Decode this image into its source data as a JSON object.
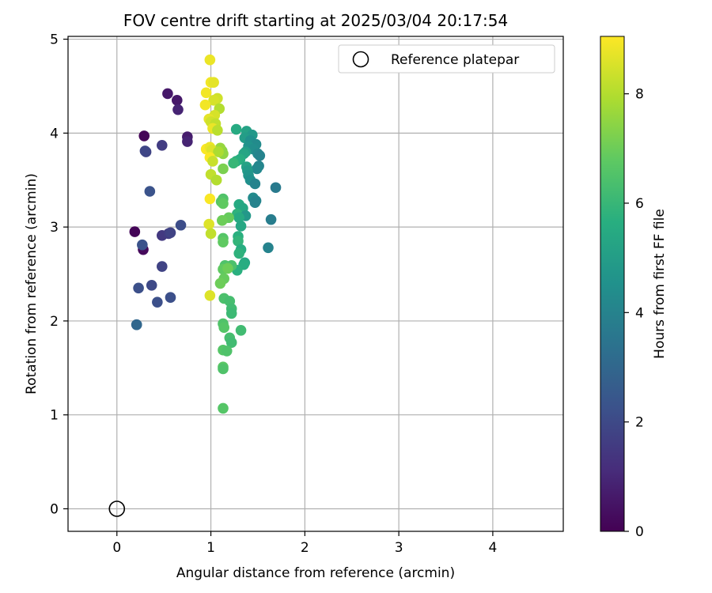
{
  "chart_data": {
    "type": "scatter",
    "title": "FOV centre drift starting at 2025/03/04 20:17:54",
    "xlabel": "Angular distance from reference (arcmin)",
    "ylabel": "Rotation from reference (arcmin)",
    "xlim": [
      -0.52,
      4.75
    ],
    "ylim": [
      -0.24,
      5.03
    ],
    "x_ticks": [
      0,
      1,
      2,
      3,
      4
    ],
    "y_ticks": [
      0,
      1,
      2,
      3,
      4,
      5
    ],
    "grid": true,
    "legend": {
      "entries": [
        "Reference platepar"
      ],
      "placement": "top-right"
    },
    "reference_point": {
      "name": "Reference platepar",
      "x": 0,
      "y": 0,
      "marker": "open-circle",
      "color": "#000000"
    },
    "colorbar": {
      "label": "Hours from first FF file",
      "min": 0,
      "max": 9.05,
      "ticks": [
        0,
        2,
        4,
        6,
        8
      ],
      "colormap": "viridis"
    },
    "points": [
      {
        "x": 0.29,
        "y": 3.97,
        "h": 0.1
      },
      {
        "x": 0.19,
        "y": 2.95,
        "h": 0.1
      },
      {
        "x": 0.28,
        "y": 2.76,
        "h": 0.2
      },
      {
        "x": 0.54,
        "y": 4.42,
        "h": 0.6
      },
      {
        "x": 0.64,
        "y": 4.35,
        "h": 0.6
      },
      {
        "x": 0.65,
        "y": 4.25,
        "h": 0.9
      },
      {
        "x": 0.75,
        "y": 3.96,
        "h": 0.7
      },
      {
        "x": 0.75,
        "y": 3.91,
        "h": 0.9
      },
      {
        "x": 0.48,
        "y": 3.87,
        "h": 1.6
      },
      {
        "x": 0.31,
        "y": 3.8,
        "h": 1.8
      },
      {
        "x": 0.3,
        "y": 3.81,
        "h": 1.9
      },
      {
        "x": 0.48,
        "y": 2.91,
        "h": 1.5
      },
      {
        "x": 0.55,
        "y": 2.93,
        "h": 1.6
      },
      {
        "x": 0.57,
        "y": 2.94,
        "h": 1.8
      },
      {
        "x": 0.68,
        "y": 3.02,
        "h": 2.1
      },
      {
        "x": 0.35,
        "y": 3.38,
        "h": 2.3
      },
      {
        "x": 0.27,
        "y": 2.81,
        "h": 2.3
      },
      {
        "x": 0.48,
        "y": 2.58,
        "h": 1.8
      },
      {
        "x": 0.23,
        "y": 2.35,
        "h": 2.2
      },
      {
        "x": 0.37,
        "y": 2.38,
        "h": 2.0
      },
      {
        "x": 0.43,
        "y": 2.2,
        "h": 2.2
      },
      {
        "x": 0.57,
        "y": 2.25,
        "h": 2.2
      },
      {
        "x": 0.21,
        "y": 1.96,
        "h": 2.9
      },
      {
        "x": 0.21,
        "y": 1.96,
        "h": 3.0
      },
      {
        "x": 1.27,
        "y": 4.04,
        "h": 5.5
      },
      {
        "x": 1.38,
        "y": 4.02,
        "h": 5.2
      },
      {
        "x": 1.44,
        "y": 3.98,
        "h": 4.8
      },
      {
        "x": 1.36,
        "y": 3.95,
        "h": 5.0
      },
      {
        "x": 1.42,
        "y": 3.92,
        "h": 4.5
      },
      {
        "x": 1.48,
        "y": 3.88,
        "h": 4.3
      },
      {
        "x": 1.4,
        "y": 3.86,
        "h": 4.6
      },
      {
        "x": 1.45,
        "y": 3.83,
        "h": 4.4
      },
      {
        "x": 1.37,
        "y": 3.8,
        "h": 5.0
      },
      {
        "x": 1.5,
        "y": 3.78,
        "h": 4.2
      },
      {
        "x": 1.52,
        "y": 3.76,
        "h": 4.0
      },
      {
        "x": 1.35,
        "y": 3.78,
        "h": 5.3
      },
      {
        "x": 1.31,
        "y": 3.72,
        "h": 5.6
      },
      {
        "x": 1.27,
        "y": 3.7,
        "h": 5.7
      },
      {
        "x": 1.24,
        "y": 3.68,
        "h": 6.0
      },
      {
        "x": 1.38,
        "y": 3.64,
        "h": 5.2
      },
      {
        "x": 1.51,
        "y": 3.65,
        "h": 4.1
      },
      {
        "x": 1.49,
        "y": 3.62,
        "h": 4.2
      },
      {
        "x": 1.39,
        "y": 3.6,
        "h": 4.9
      },
      {
        "x": 1.4,
        "y": 3.55,
        "h": 4.7
      },
      {
        "x": 1.42,
        "y": 3.5,
        "h": 4.5
      },
      {
        "x": 1.47,
        "y": 3.46,
        "h": 4.0
      },
      {
        "x": 1.69,
        "y": 3.42,
        "h": 3.7
      },
      {
        "x": 1.45,
        "y": 3.31,
        "h": 4.3
      },
      {
        "x": 1.48,
        "y": 3.28,
        "h": 4.1
      },
      {
        "x": 1.47,
        "y": 3.26,
        "h": 4.0
      },
      {
        "x": 1.3,
        "y": 3.24,
        "h": 5.5
      },
      {
        "x": 1.34,
        "y": 3.2,
        "h": 5.4
      },
      {
        "x": 1.28,
        "y": 3.14,
        "h": 5.8
      },
      {
        "x": 1.37,
        "y": 3.12,
        "h": 4.8
      },
      {
        "x": 1.3,
        "y": 3.1,
        "h": 5.5
      },
      {
        "x": 1.64,
        "y": 3.08,
        "h": 3.8
      },
      {
        "x": 1.32,
        "y": 3.01,
        "h": 5.4
      },
      {
        "x": 1.29,
        "y": 2.9,
        "h": 5.7
      },
      {
        "x": 1.29,
        "y": 2.85,
        "h": 5.9
      },
      {
        "x": 1.61,
        "y": 2.78,
        "h": 4.0
      },
      {
        "x": 1.32,
        "y": 2.76,
        "h": 5.6
      },
      {
        "x": 1.3,
        "y": 2.72,
        "h": 5.8
      },
      {
        "x": 1.36,
        "y": 2.62,
        "h": 5.4
      },
      {
        "x": 1.35,
        "y": 2.6,
        "h": 5.6
      },
      {
        "x": 1.28,
        "y": 2.54,
        "h": 5.7
      },
      {
        "x": 1.22,
        "y": 2.59,
        "h": 6.4
      },
      {
        "x": 1.15,
        "y": 2.59,
        "h": 6.5
      },
      {
        "x": 1.13,
        "y": 2.55,
        "h": 6.8
      },
      {
        "x": 1.18,
        "y": 2.56,
        "h": 7.0
      },
      {
        "x": 1.14,
        "y": 2.45,
        "h": 6.9
      },
      {
        "x": 1.1,
        "y": 2.4,
        "h": 7.0
      },
      {
        "x": 1.14,
        "y": 2.24,
        "h": 6.4
      },
      {
        "x": 1.2,
        "y": 2.21,
        "h": 6.3
      },
      {
        "x": 1.22,
        "y": 2.13,
        "h": 6.2
      },
      {
        "x": 1.22,
        "y": 2.08,
        "h": 6.1
      },
      {
        "x": 1.13,
        "y": 1.97,
        "h": 6.5
      },
      {
        "x": 1.14,
        "y": 1.93,
        "h": 6.6
      },
      {
        "x": 1.32,
        "y": 1.9,
        "h": 6.2
      },
      {
        "x": 1.2,
        "y": 1.82,
        "h": 6.3
      },
      {
        "x": 1.22,
        "y": 1.77,
        "h": 6.2
      },
      {
        "x": 1.13,
        "y": 1.69,
        "h": 6.6
      },
      {
        "x": 1.17,
        "y": 1.68,
        "h": 6.5
      },
      {
        "x": 1.13,
        "y": 1.51,
        "h": 6.7
      },
      {
        "x": 1.13,
        "y": 1.49,
        "h": 6.5
      },
      {
        "x": 1.13,
        "y": 1.07,
        "h": 6.6
      },
      {
        "x": 1.13,
        "y": 3.3,
        "h": 6.5
      },
      {
        "x": 1.11,
        "y": 3.27,
        "h": 6.6
      },
      {
        "x": 1.13,
        "y": 3.25,
        "h": 6.8
      },
      {
        "x": 1.19,
        "y": 3.1,
        "h": 6.9
      },
      {
        "x": 1.12,
        "y": 3.07,
        "h": 7.0
      },
      {
        "x": 1.13,
        "y": 2.88,
        "h": 6.6
      },
      {
        "x": 1.13,
        "y": 2.84,
        "h": 6.8
      },
      {
        "x": 1.13,
        "y": 3.62,
        "h": 7.2
      },
      {
        "x": 1.12,
        "y": 3.81,
        "h": 7.3
      },
      {
        "x": 1.1,
        "y": 3.84,
        "h": 7.6
      },
      {
        "x": 1.13,
        "y": 3.78,
        "h": 7.5
      },
      {
        "x": 0.99,
        "y": 4.78,
        "h": 8.8
      },
      {
        "x": 1.0,
        "y": 4.54,
        "h": 8.9
      },
      {
        "x": 1.03,
        "y": 4.54,
        "h": 8.7
      },
      {
        "x": 0.95,
        "y": 4.43,
        "h": 8.9
      },
      {
        "x": 1.07,
        "y": 4.37,
        "h": 8.4
      },
      {
        "x": 1.03,
        "y": 4.35,
        "h": 8.5
      },
      {
        "x": 0.94,
        "y": 4.3,
        "h": 8.9
      },
      {
        "x": 1.09,
        "y": 4.26,
        "h": 8.0
      },
      {
        "x": 1.04,
        "y": 4.19,
        "h": 8.5
      },
      {
        "x": 0.98,
        "y": 4.15,
        "h": 8.7
      },
      {
        "x": 1.0,
        "y": 4.12,
        "h": 8.4
      },
      {
        "x": 1.05,
        "y": 4.1,
        "h": 8.2
      },
      {
        "x": 1.02,
        "y": 4.05,
        "h": 8.8
      },
      {
        "x": 1.07,
        "y": 4.03,
        "h": 8.1
      },
      {
        "x": 0.95,
        "y": 3.83,
        "h": 9.0
      },
      {
        "x": 0.99,
        "y": 3.85,
        "h": 8.8
      },
      {
        "x": 1.01,
        "y": 3.82,
        "h": 8.6
      },
      {
        "x": 1.08,
        "y": 3.8,
        "h": 7.9
      },
      {
        "x": 0.99,
        "y": 3.74,
        "h": 9.0
      },
      {
        "x": 1.02,
        "y": 3.7,
        "h": 8.3
      },
      {
        "x": 1.0,
        "y": 3.56,
        "h": 8.2
      },
      {
        "x": 1.06,
        "y": 3.5,
        "h": 8.0
      },
      {
        "x": 0.99,
        "y": 3.3,
        "h": 9.0
      },
      {
        "x": 0.98,
        "y": 3.03,
        "h": 8.6
      },
      {
        "x": 1.0,
        "y": 2.93,
        "h": 8.2
      },
      {
        "x": 0.99,
        "y": 2.27,
        "h": 8.6
      }
    ]
  }
}
